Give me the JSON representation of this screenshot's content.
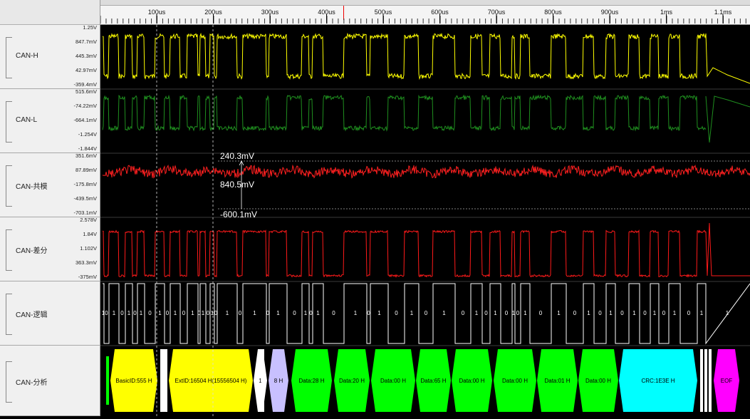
{
  "ruler": {
    "labels": [
      "100us",
      "200us",
      "300us",
      "400us",
      "500us",
      "600us",
      "700us",
      "800us",
      "900us",
      "1ms",
      "1.1ms"
    ]
  },
  "channels": [
    {
      "name": "CAN-H",
      "ticks": [
        "1.25V",
        "847.7mV",
        "445.3mV",
        "42.97mV",
        "-359.4mV"
      ]
    },
    {
      "name": "CAN-L",
      "ticks": [
        "515.6mV",
        "-74.22mV",
        "-664.1mV",
        "-1.254V",
        "-1.844V"
      ]
    },
    {
      "name": "CAN-共模",
      "ticks": [
        "351.6mV",
        "87.89mV",
        "-175.8mV",
        "-439.5mV",
        "-703.1mV"
      ]
    },
    {
      "name": "CAN-差分",
      "ticks": [
        "2.578V",
        "1.84V",
        "1.102V",
        "363.3mV",
        "-375mV"
      ]
    },
    {
      "name": "CAN-逻辑",
      "ticks": []
    },
    {
      "name": "CAN-分析",
      "ticks": []
    }
  ],
  "measure": {
    "upper": "240.3mV",
    "delta": "840.5mV",
    "lower": "-600.1mV"
  },
  "logic_bits": [
    "1",
    "0",
    "1",
    "0",
    "1",
    "0",
    "1",
    "0",
    "1",
    "0",
    "1",
    "0",
    "1",
    "0",
    "1",
    "0",
    "1",
    "0",
    "1",
    "0",
    "1",
    "0",
    "1",
    "0",
    "1",
    "0",
    "1",
    "0",
    "1",
    "0",
    "1",
    "0",
    "1",
    "0",
    "1",
    "0",
    "1",
    "0",
    "1",
    "0",
    "1",
    "0",
    "1",
    "0",
    "1",
    "0",
    "1",
    "0",
    "1",
    "0",
    "1",
    "0",
    "1",
    "0",
    "1",
    "0",
    "1",
    "0",
    "1",
    "0",
    "1",
    "0",
    "1",
    "0",
    "1",
    "0",
    "1",
    "0",
    "1"
  ],
  "segments": [
    {
      "label": "BasicID:555 H",
      "color": "#ffff00"
    },
    {
      "label": "ExtID:16504 H(15556504 H)",
      "color": "#ffff00"
    },
    {
      "label": "1",
      "color": "#ffffff"
    },
    {
      "label": "8 H",
      "color": "#c8c0ff"
    },
    {
      "label": "Data:28 H",
      "color": "#00ff00"
    },
    {
      "label": "Data:20 H",
      "color": "#00ff00"
    },
    {
      "label": "Data:00 H",
      "color": "#00ff00"
    },
    {
      "label": "Data:65 H",
      "color": "#00ff00"
    },
    {
      "label": "Data:00 H",
      "color": "#00ff00"
    },
    {
      "label": "Data:00 H",
      "color": "#00ff00"
    },
    {
      "label": "Data:01 H",
      "color": "#00ff00"
    },
    {
      "label": "Data:00 H",
      "color": "#00ff00"
    },
    {
      "label": "CRC:1E3E H",
      "color": "#00ffff"
    },
    {
      "label": "EOF",
      "color": "#ff00ff"
    }
  ],
  "colors": {
    "can_h": "#ffff00",
    "can_l": "#1f8f1f",
    "common": "#ff2020",
    "diff": "#ff1a1a",
    "logic": "#ffffff"
  }
}
